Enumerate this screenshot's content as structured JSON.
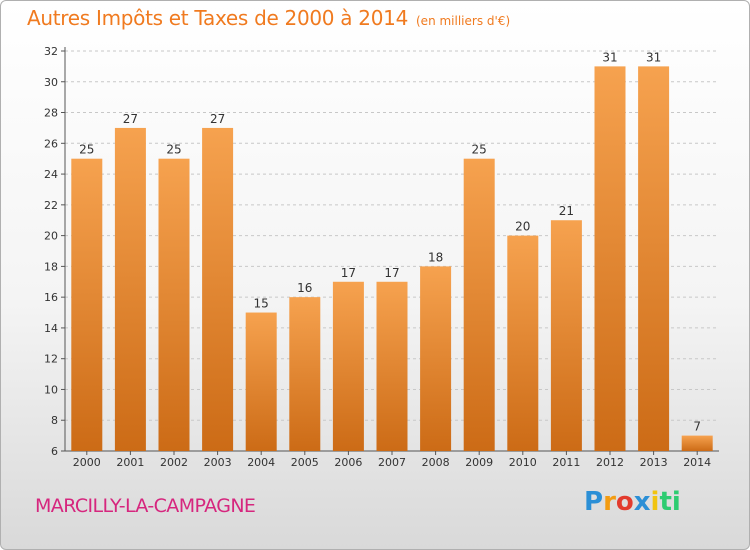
{
  "header": {
    "title": "Autres Impôts et Taxes de 2000 à 2014",
    "subtitle": "(en milliers d'€)"
  },
  "footer": {
    "commune": "MARCILLY-LA-CAMPAGNE",
    "logo": {
      "letters": [
        "P",
        "r",
        "o",
        "x",
        "i",
        "t",
        "i"
      ],
      "colors": [
        "#2b8fd6",
        "#f39c12",
        "#e23b2e",
        "#2b8fd6",
        "#f1c40f",
        "#2ecc71",
        "#2ecc71"
      ]
    }
  },
  "colors": {
    "bar_light": "#f6a24f",
    "bar_dark": "#cc6b16",
    "title": "#f07a1f",
    "commune": "#d6267e"
  },
  "chart_data": {
    "type": "bar",
    "title": "Autres Impôts et Taxes de 2000 à 2014",
    "subtitle": "(en milliers d'€)",
    "categories": [
      "2000",
      "2001",
      "2002",
      "2003",
      "2004",
      "2005",
      "2006",
      "2007",
      "2008",
      "2009",
      "2010",
      "2011",
      "2012",
      "2013",
      "2014"
    ],
    "values": [
      25,
      27,
      25,
      27,
      15,
      16,
      17,
      17,
      18,
      25,
      20,
      21,
      31,
      31,
      7
    ],
    "ylim": [
      6,
      32
    ],
    "yticks": [
      6,
      8,
      10,
      12,
      14,
      16,
      18,
      20,
      22,
      24,
      26,
      28,
      30,
      32
    ],
    "grid": true,
    "xlabel": "",
    "ylabel": ""
  }
}
